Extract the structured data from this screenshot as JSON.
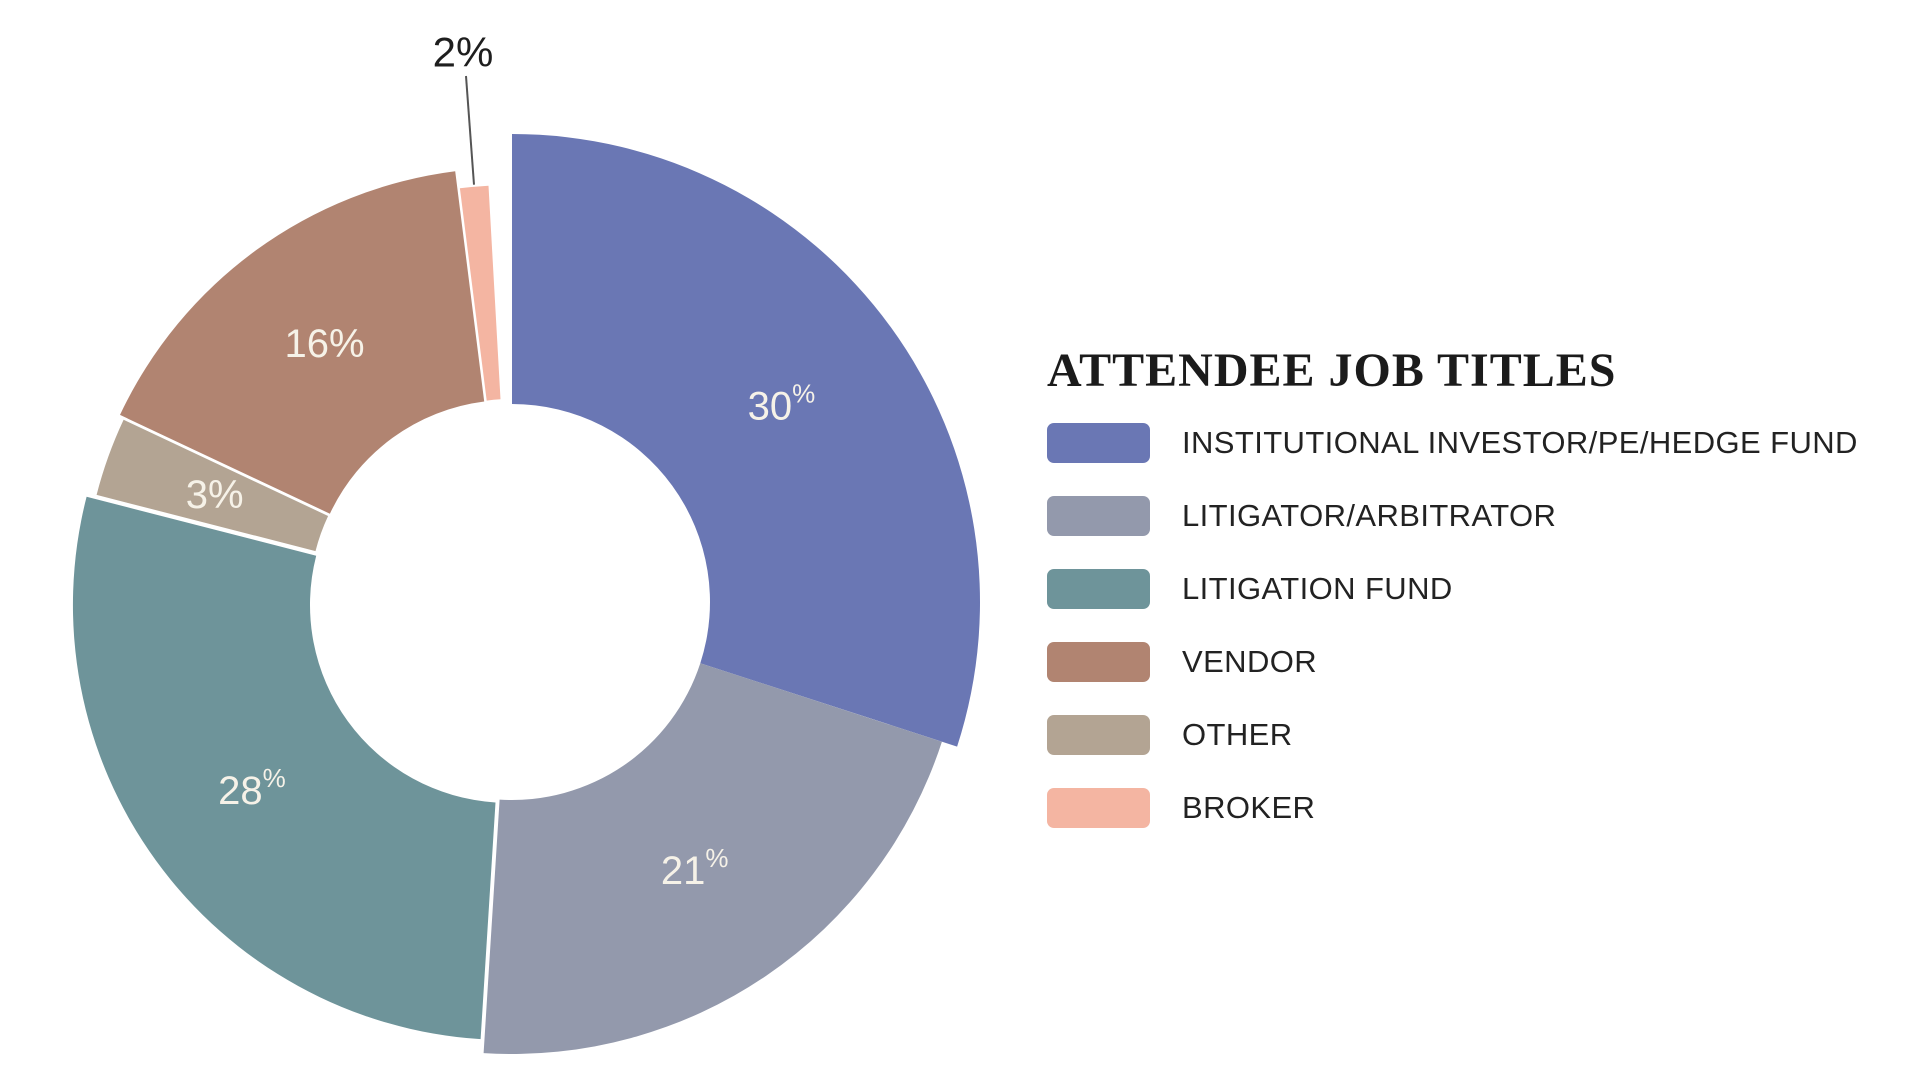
{
  "chart_data": {
    "type": "pie",
    "variant": "donut",
    "title": "ATTENDEE JOB TITLES",
    "unit": "percent",
    "total": 100,
    "start_angle_deg": 0,
    "direction": "clockwise",
    "slices": [
      {
        "label": "INSTITUTIONAL INVESTOR/PE/HEDGE FUND",
        "value": 30,
        "display": "30%",
        "color": "#6A77B4",
        "percent_style": "superscript",
        "label_placement": "inside"
      },
      {
        "label": "LITIGATOR/ARBITRATOR",
        "value": 21,
        "display": "21%",
        "color": "#9399AC",
        "percent_style": "superscript",
        "label_placement": "inside"
      },
      {
        "label": "LITIGATION FUND",
        "value": 28,
        "display": "28%",
        "color": "#6E949A",
        "percent_style": "superscript",
        "label_placement": "inside"
      },
      {
        "label": "OTHER",
        "value": 3,
        "display": "3%",
        "color": "#B3A493",
        "percent_style": "plain",
        "label_placement": "inside"
      },
      {
        "label": "VENDOR",
        "value": 16,
        "display": "16%",
        "color": "#B18471",
        "percent_style": "plain",
        "label_placement": "inside"
      },
      {
        "label": "BROKER",
        "value": 2,
        "display": "2%",
        "color": "#F4B5A2",
        "percent_style": "plain",
        "label_placement": "outside-callout"
      }
    ],
    "legend": {
      "position": "right",
      "item_order": [
        "INSTITUTIONAL INVESTOR/PE/HEDGE FUND",
        "LITIGATOR/ARBITRATOR",
        "LITIGATION FUND",
        "VENDOR",
        "OTHER",
        "BROKER"
      ]
    },
    "colors": {
      "background": "#FFFFFF",
      "inside_label_text": "#F6F2E8",
      "outside_label_text": "#1E1E1E",
      "callout_line": "#555555",
      "legend_title_text": "#1B1B1B",
      "legend_label_text": "#222222"
    }
  }
}
